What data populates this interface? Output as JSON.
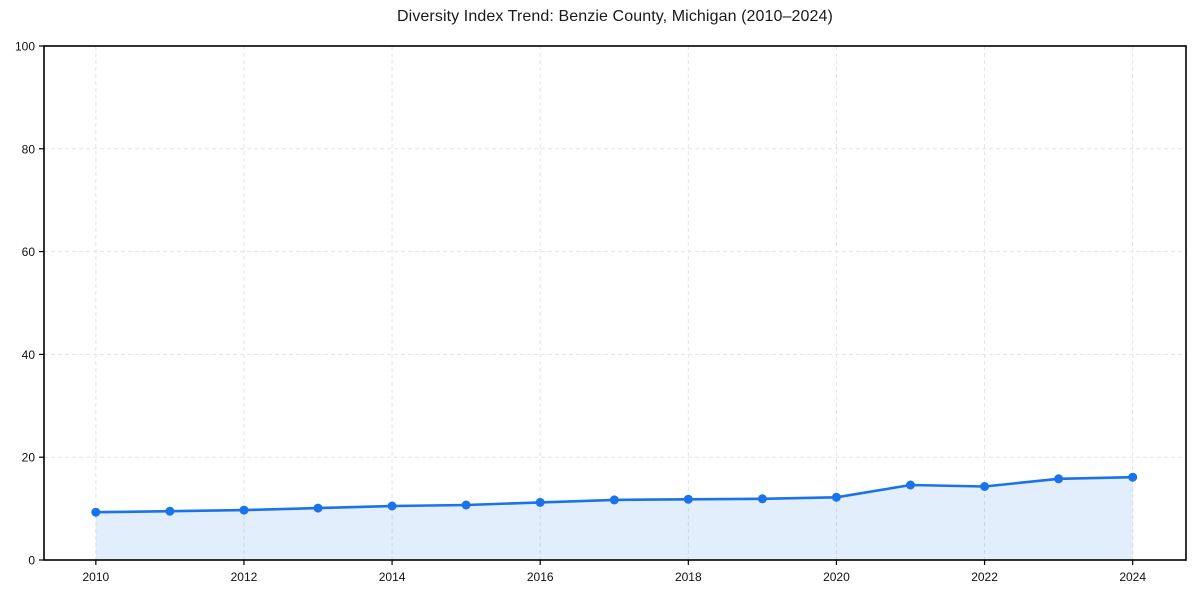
{
  "chart_data": {
    "type": "line",
    "title": "Diversity Index Trend: Benzie County, Michigan (2010–2024)",
    "x": [
      2010,
      2011,
      2012,
      2013,
      2014,
      2015,
      2016,
      2017,
      2018,
      2019,
      2020,
      2021,
      2022,
      2023,
      2024
    ],
    "series": [
      {
        "name": "Diversity Index",
        "values": [
          9.3,
          9.5,
          9.7,
          10.1,
          10.5,
          10.7,
          11.2,
          11.7,
          11.8,
          11.9,
          12.2,
          14.6,
          14.3,
          15.8,
          16.1
        ]
      }
    ],
    "xlabel": "",
    "ylabel": "",
    "xlim": [
      2009.3,
      2024.72
    ],
    "ylim": [
      0,
      100
    ],
    "xticks": [
      2010,
      2012,
      2014,
      2016,
      2018,
      2020,
      2022,
      2024
    ],
    "yticks": [
      0,
      20,
      40,
      60,
      80,
      100
    ],
    "grid": "dashed",
    "legend": "none",
    "area_fill": true,
    "marker": "circle",
    "colors": {
      "line": "#1a73e8",
      "fill": "rgba(26,115,232,0.12)",
      "grid": "#e4e4e4",
      "axis": "#000000",
      "tick_text": "#111111",
      "background": "#ffffff"
    }
  }
}
